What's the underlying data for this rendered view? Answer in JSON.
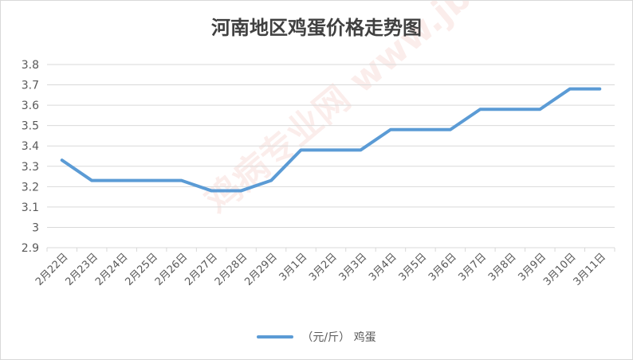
{
  "chart_data": {
    "type": "line",
    "title": "河南地区鸡蛋价格走势图",
    "categories": [
      "2月22日",
      "2月23日",
      "2月24日",
      "2月25日",
      "2月26日",
      "2月27日",
      "2月28日",
      "2月29日",
      "3月1日",
      "3月2日",
      "3月3日",
      "3月4日",
      "3月5日",
      "3月6日",
      "3月7日",
      "3月8日",
      "3月9日",
      "3月10日",
      "3月11日"
    ],
    "series": [
      {
        "name": "（元/斤） 鸡蛋",
        "values": [
          3.33,
          3.23,
          3.23,
          3.23,
          3.23,
          3.18,
          3.18,
          3.23,
          3.38,
          3.38,
          3.38,
          3.48,
          3.48,
          3.48,
          3.58,
          3.58,
          3.58,
          3.68,
          3.68
        ]
      }
    ],
    "yticks": [
      "2.9",
      "3",
      "3.1",
      "3.2",
      "3.3",
      "3.4",
      "3.5",
      "3.6",
      "3.7",
      "3.8"
    ],
    "ylim": [
      2.9,
      3.8
    ],
    "grid": true,
    "legend_position": "bottom",
    "line_color": "#5b9bd5"
  },
  "watermark": "鸡病专业网 www.jbzyw.com"
}
